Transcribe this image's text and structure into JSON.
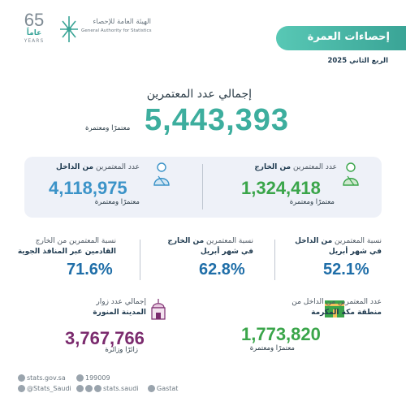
{
  "header": {
    "anniversary_number": "65",
    "anniversary_ar": "عاماً",
    "anniversary_en": "YEARS",
    "org_name_ar": "الهيئة العامة للإحصاء",
    "org_name_en": "General Authority for Statistics",
    "title": "إحصاءات العمرة",
    "quarter": "الربع الثاني 2025"
  },
  "total": {
    "label": "إجمالي عدد المعتمرين",
    "value": "5,443,393",
    "unit": "معتمرًا ومعتمرة"
  },
  "panel": {
    "outside": {
      "label_a": "عدد المعتمرين",
      "label_b": "من الخارج",
      "value": "1,324,418",
      "unit": "معتمرًا ومعتمرة"
    },
    "inside": {
      "label_a": "عدد المعتمرين",
      "label_b": "من الداخل",
      "value": "4,118,975",
      "unit": "معتمرًا ومعتمرة"
    }
  },
  "percentages": [
    {
      "line1a": "نسبة المعتمرين",
      "line1b": "من الداخل",
      "line2": "في شهر أبريل",
      "value": "52.1%"
    },
    {
      "line1a": "نسبة المعتمرين",
      "line1b": "من الخارج",
      "line2": "في شهر أبريل",
      "value": "62.8%"
    },
    {
      "line1a": "نسبة المعتمرين من الخارج",
      "line1b": "",
      "line2": "القادمين عبر المنافذ الجوية",
      "value": "71.6%"
    }
  ],
  "makkah": {
    "line1": "عدد المعتمرين من الداخل من",
    "line2": "منطقة مكة المكرمة",
    "value": "1,773,820",
    "unit": "معتمرًا ومعتمرة"
  },
  "madinah": {
    "line1": "إجمالي عدد زوار",
    "line2": "المدينة المنورة",
    "value": "3,767,766",
    "unit": "زائرًا وزائرة"
  },
  "footer": {
    "website": "stats.gov.sa",
    "phone": "199009",
    "twitter": "@Stats_Saudi",
    "social": "stats.saudi",
    "gastat": "Gastat"
  },
  "colors": {
    "teal": "#3dae9e",
    "blue": "#1f6ea8",
    "purple": "#7b2b6e",
    "green": "#3aa54a"
  }
}
